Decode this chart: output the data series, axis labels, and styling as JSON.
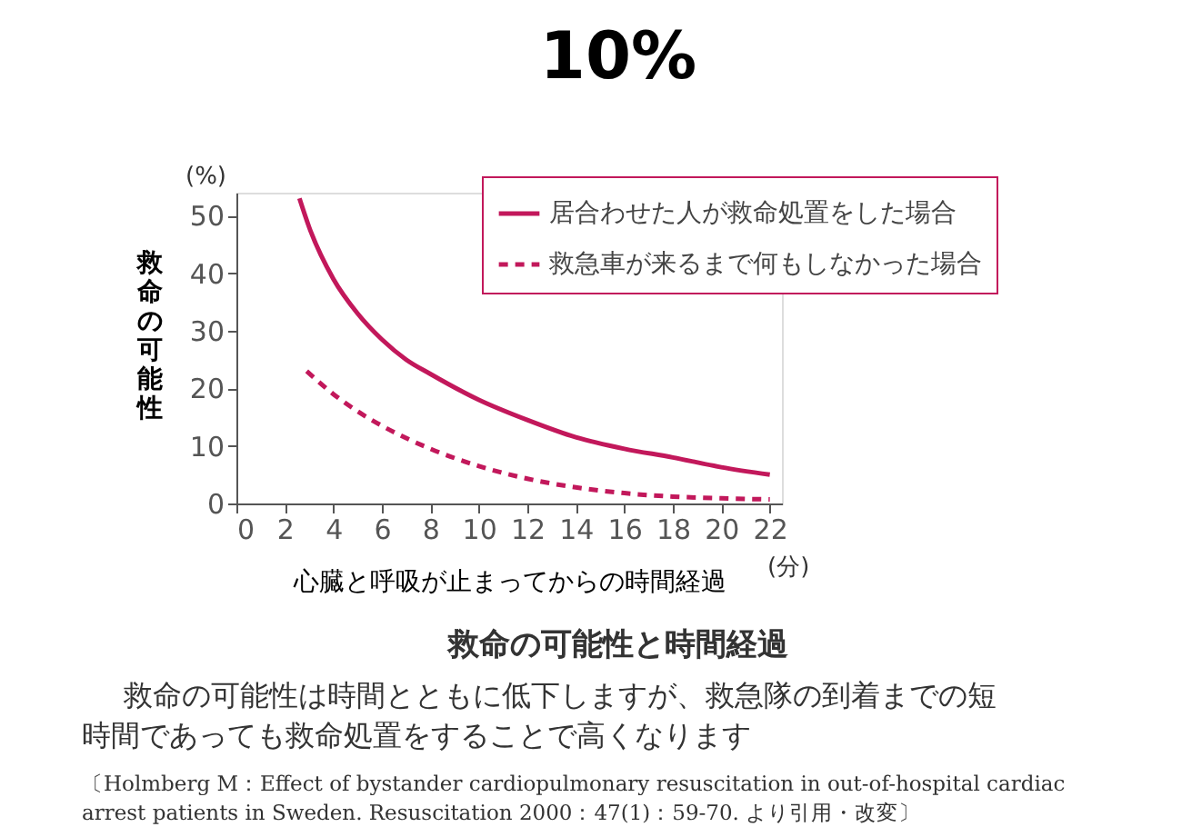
{
  "chart_data": {
    "type": "line",
    "title": "10%",
    "subtitle": "救命の可能性と時間経過",
    "xlabel": "心臓と呼吸が止まってからの時間経過",
    "ylabel": "救命の可能性",
    "series": [
      {
        "name": "居合わせた人が救命処置をした場合",
        "color": "#c2185b",
        "line_style": "solid",
        "x": [
          2.6,
          3,
          4,
          5,
          6,
          7,
          8,
          10,
          12,
          14,
          16,
          18,
          20,
          22
        ],
        "values": [
          53,
          48,
          39,
          33,
          28.5,
          25,
          22.5,
          18,
          14.5,
          11.5,
          9.5,
          8,
          6.3,
          5
        ]
      },
      {
        "name": "救急車が来るまで何もしなかった場合",
        "color": "#c2185b",
        "line_style": "dashed",
        "x": [
          2.9,
          4,
          5,
          6,
          8,
          10,
          12,
          14,
          16,
          18,
          20,
          22
        ],
        "values": [
          23,
          19,
          16,
          13.5,
          9.5,
          6.5,
          4.3,
          2.8,
          1.8,
          1.2,
          0.9,
          0.7
        ]
      }
    ],
    "xlim": [
      0,
      22.5
    ],
    "xticks": [
      0,
      2,
      4,
      6,
      8,
      10,
      12,
      14,
      16,
      18,
      20,
      22
    ],
    "ylim": [
      0,
      54
    ],
    "yticks": [
      0,
      10,
      20,
      30,
      40,
      50
    ],
    "grid": false,
    "legend": "top right",
    "marker": "none",
    "annotations": [
      "(%)",
      "(分)",
      "救命の可能性は時間とともに低下しますが、救急隊の到着までの短",
      "時間であっても救命処置をすることで高くなります",
      "〔Holmberg M：Effect of bystander cardiopulmonary resuscitation in out-of-hospital cardiac",
      "arrest patients in Sweden. Resuscitation 2000：47(1)：59-70. より引用・改変〕"
    ]
  }
}
